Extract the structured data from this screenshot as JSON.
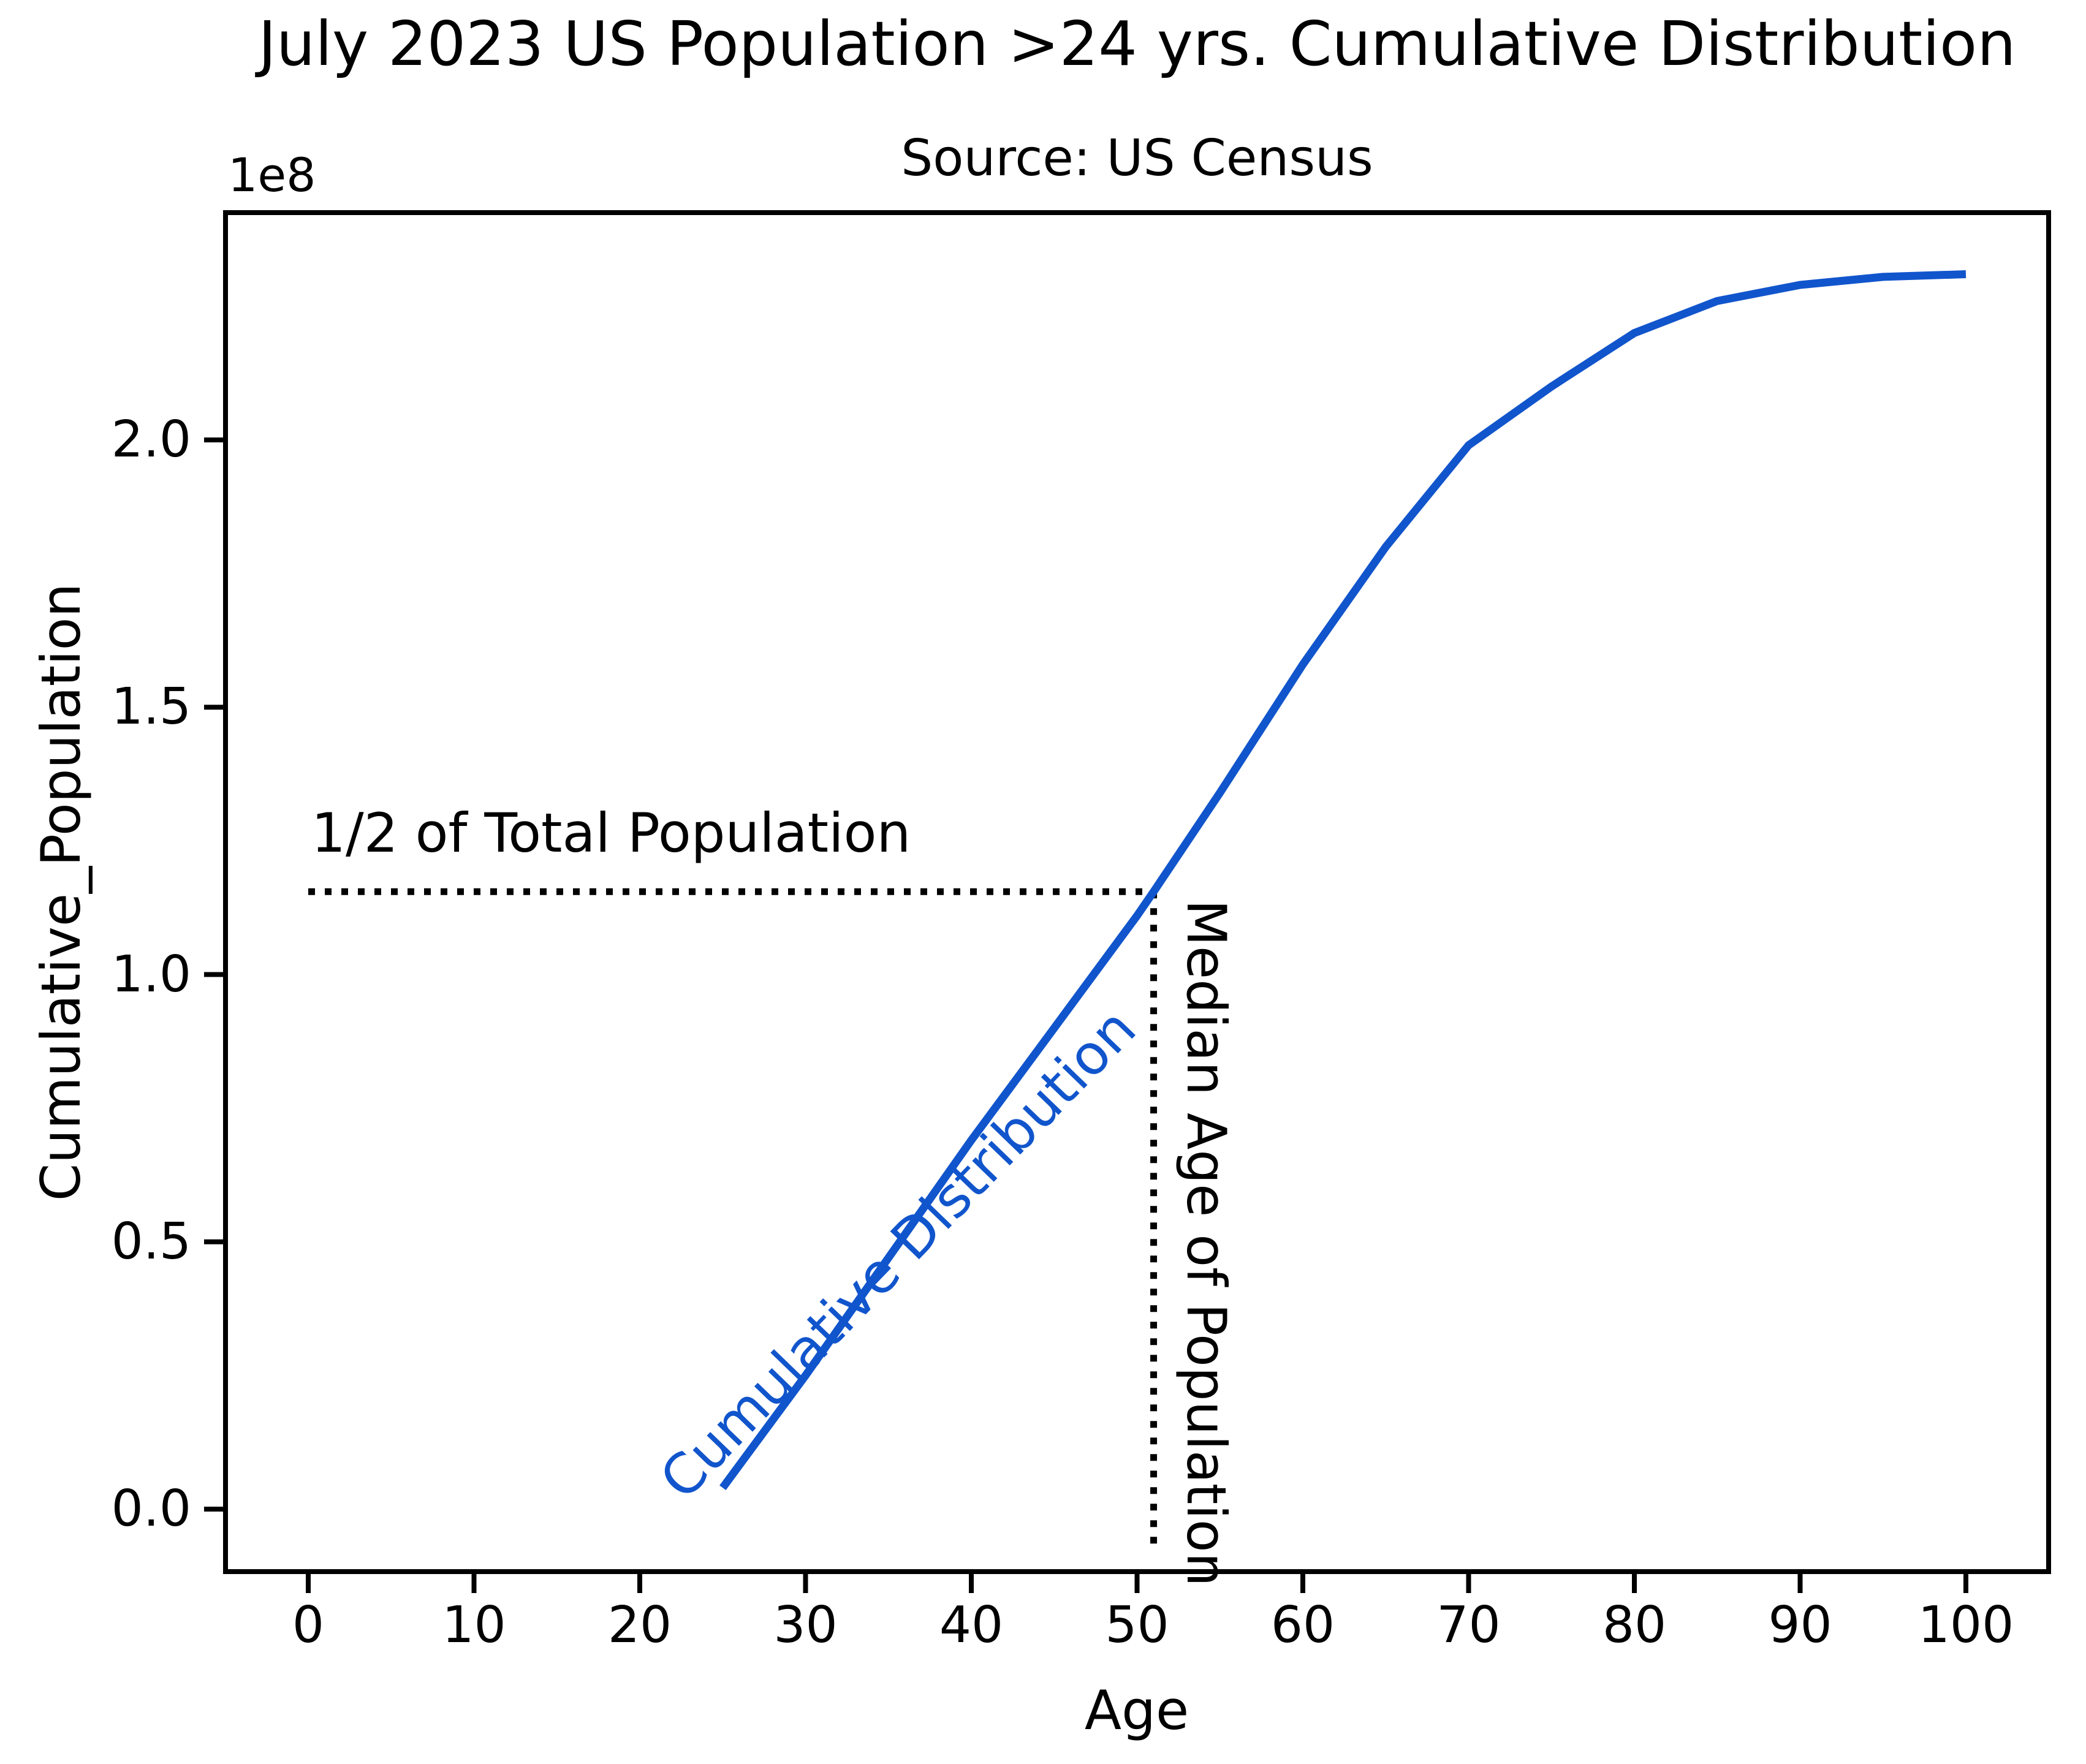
{
  "title": "July 2023 US Population >24 yrs. Cumulative Distribution",
  "subtitle": "Source: US Census",
  "annotations": {
    "half_population_label": "1/2 of Total Population",
    "median_age_label": "Median Age of Population",
    "curve_label": "Cumulative Distribution"
  },
  "axes": {
    "x": {
      "label": "Age",
      "ticks": [
        {
          "label": "0",
          "value": 0
        },
        {
          "label": "10",
          "value": 10
        },
        {
          "label": "20",
          "value": 20
        },
        {
          "label": "30",
          "value": 30
        },
        {
          "label": "40",
          "value": 40
        },
        {
          "label": "50",
          "value": 50
        },
        {
          "label": "60",
          "value": 60
        },
        {
          "label": "70",
          "value": 70
        },
        {
          "label": "80",
          "value": 80
        },
        {
          "label": "90",
          "value": 90
        },
        {
          "label": "100",
          "value": 100
        }
      ]
    },
    "y": {
      "label": "Cumulative_Population",
      "offset_text": "1e8",
      "ticks": [
        {
          "label": "0.0",
          "value": 0.0
        },
        {
          "label": "0.5",
          "value": 0.5
        },
        {
          "label": "1.0",
          "value": 1.0
        },
        {
          "label": "1.5",
          "value": 1.5
        },
        {
          "label": "2.0",
          "value": 2.0
        }
      ]
    }
  },
  "colors": {
    "line_blue": "#1155cc",
    "axis_black": "#000000",
    "background": "#ffffff"
  },
  "chart_data": {
    "type": "line",
    "title": "July 2023 US Population >24 yrs. Cumulative Distribution",
    "subtitle": "Source: US Census",
    "xlabel": "Age",
    "ylabel": "Cumulative_Population",
    "y_units": "1e8 persons",
    "xlim": [
      -5,
      105
    ],
    "ylim_1e8": [
      -0.12,
      2.43
    ],
    "grid": false,
    "legend": "none",
    "series": [
      {
        "name": "Cumulative Distribution",
        "color": "#1155cc",
        "x": [
          25,
          30,
          35,
          40,
          45,
          50,
          51,
          55,
          60,
          65,
          70,
          75,
          76,
          80,
          85,
          90,
          95,
          100
        ],
        "y_1e8": [
          0.04,
          0.25,
          0.47,
          0.69,
          0.9,
          1.11,
          1.155,
          1.34,
          1.58,
          1.8,
          1.99,
          2.1,
          2.12,
          2.2,
          2.26,
          2.29,
          2.305,
          2.31
        ]
      }
    ],
    "guides": {
      "half_total_population_1e8": 1.155,
      "median_age": 51,
      "intersection": {
        "x": 51,
        "y_1e8": 1.155
      }
    }
  }
}
